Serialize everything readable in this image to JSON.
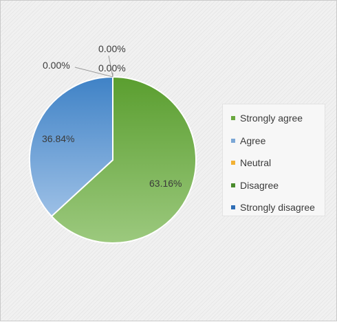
{
  "chart_data": {
    "type": "pie",
    "title": "",
    "legend_position": "right",
    "slices": [
      {
        "name": "Strongly agree",
        "value": 63.16,
        "label": "63.16%",
        "color": "#6aa83f"
      },
      {
        "name": "Agree",
        "value": 36.84,
        "label": "36.84%",
        "color": "#5b9bd5"
      },
      {
        "name": "Neutral",
        "value": 0,
        "label": "0.00%",
        "color": "#f2b134"
      },
      {
        "name": "Disagree",
        "value": 0,
        "label": "0.00%",
        "color": "#4a8b2c"
      },
      {
        "name": "Strongly disagree",
        "value": 0,
        "label": "0.00%",
        "color": "#2e6db5"
      }
    ]
  },
  "legend": {
    "items": [
      {
        "label": "Strongly agree",
        "color": "#6aa83f"
      },
      {
        "label": "Agree",
        "color": "#7ba7d6"
      },
      {
        "label": "Neutral",
        "color": "#f2b134"
      },
      {
        "label": "Disagree",
        "color": "#4a8b2c"
      },
      {
        "label": "Strongly disagree",
        "color": "#2e6db5"
      }
    ]
  }
}
